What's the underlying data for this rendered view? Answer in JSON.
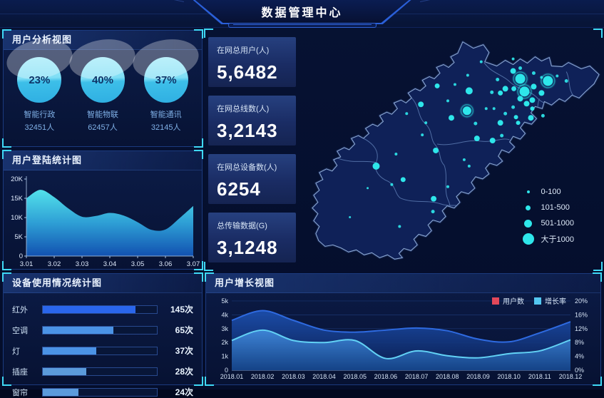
{
  "header": {
    "title": "数据管理中心"
  },
  "colors": {
    "accent_cyan": "#3fd9f6",
    "bubble": "#2ee6ea",
    "legend_red": "#e2485a",
    "legend_cyan": "#53c7f0",
    "area_top": "#55e8f0",
    "area_bottom": "#1253b4"
  },
  "panels": {
    "user_analysis": {
      "title": "用户分析视图",
      "gauges": [
        {
          "percent": "23%",
          "label": "智能行政",
          "count": "32451人"
        },
        {
          "percent": "40%",
          "label": "智能物联",
          "count": "62457人"
        },
        {
          "percent": "37%",
          "label": "智能通讯",
          "count": "32145人"
        }
      ]
    },
    "login_stats": {
      "title": "用户登陆统计图"
    },
    "device_usage": {
      "title": "设备使用情况统计图"
    },
    "user_growth": {
      "title": "用户增长视图"
    }
  },
  "stats": [
    {
      "label": "在网总用户(人)",
      "value": "5,6482"
    },
    {
      "label": "在网总线数(人)",
      "value": "3,2143"
    },
    {
      "label": "在网总设备数(人)",
      "value": "6254"
    },
    {
      "label": "总传输数据(G)",
      "value": "3,1248"
    }
  ],
  "map": {
    "legend": [
      {
        "label": "0-100",
        "r": 2
      },
      {
        "label": "101-500",
        "r": 3.5
      },
      {
        "label": "501-1000",
        "r": 5.5
      },
      {
        "label": "大于1000",
        "r": 8
      }
    ],
    "bubbles": [
      [
        313,
        68,
        7
      ],
      [
        352,
        71,
        7
      ],
      [
        319,
        86,
        7
      ],
      [
        238,
        113,
        6
      ],
      [
        241,
        85,
        5
      ],
      [
        303,
        57,
        4
      ],
      [
        332,
        79,
        4
      ],
      [
        313,
        96,
        4
      ],
      [
        322,
        103,
        4
      ],
      [
        330,
        98,
        4
      ],
      [
        343,
        88,
        4
      ],
      [
        292,
        82,
        4
      ],
      [
        285,
        88,
        3.5
      ],
      [
        304,
        82,
        3.5
      ],
      [
        173,
        104,
        4
      ],
      [
        216,
        123,
        4
      ],
      [
        285,
        130,
        4
      ],
      [
        252,
        152,
        4
      ],
      [
        274,
        155,
        4
      ],
      [
        194,
        169,
        4
      ],
      [
        110,
        191,
        5
      ],
      [
        191,
        237,
        4
      ],
      [
        148,
        210,
        3.5
      ],
      [
        328,
        123,
        4
      ],
      [
        196,
        78,
        3.5
      ],
      [
        310,
        130,
        3
      ],
      [
        330,
        110,
        3
      ],
      [
        345,
        120,
        2.5
      ],
      [
        307,
        122,
        3
      ],
      [
        239,
        63,
        2
      ],
      [
        258,
        44,
        2
      ],
      [
        303,
        40,
        2
      ],
      [
        313,
        53,
        2.5
      ],
      [
        332,
        60,
        2.5
      ],
      [
        343,
        66,
        2
      ],
      [
        365,
        64,
        2
      ],
      [
        378,
        71,
        2.5
      ],
      [
        281,
        69,
        2.5
      ],
      [
        273,
        87,
        2.5
      ],
      [
        265,
        110,
        2
      ],
      [
        276,
        110,
        2
      ],
      [
        292,
        117,
        2.5
      ],
      [
        303,
        108,
        2.5
      ],
      [
        221,
        76,
        2
      ],
      [
        180,
        130,
        2
      ],
      [
        175,
        147,
        2
      ],
      [
        153,
        117,
        2
      ],
      [
        211,
        99,
        2
      ],
      [
        250,
        131,
        2.5
      ],
      [
        234,
        182,
        2
      ],
      [
        241,
        191,
        2
      ],
      [
        138,
        174,
        2
      ],
      [
        98,
        222,
        1.5
      ],
      [
        132,
        217,
        2
      ],
      [
        211,
        220,
        2
      ],
      [
        190,
        255,
        2.5
      ],
      [
        73,
        263,
        1.5
      ],
      [
        143,
        276,
        2
      ],
      [
        287,
        148,
        2.5
      ]
    ]
  },
  "chart_data": [
    {
      "id": "login_stats",
      "type": "area",
      "title": "用户登陆统计图",
      "xticks": [
        "3.01",
        "3.02",
        "3.03",
        "3.04",
        "3.05",
        "3.06",
        "3.07"
      ],
      "yticks": [
        "0",
        "5K",
        "10K",
        "15K",
        "20K"
      ],
      "ylim": [
        0,
        20000
      ],
      "x": [
        3.01,
        3.015,
        3.02,
        3.025,
        3.03,
        3.035,
        3.04,
        3.045,
        3.05,
        3.055,
        3.06,
        3.065,
        3.07
      ],
      "values": [
        15000,
        17200,
        15300,
        12400,
        10200,
        10400,
        11200,
        10500,
        8800,
        6800,
        6900,
        9800,
        13000
      ]
    },
    {
      "id": "device_usage",
      "type": "bar",
      "orientation": "horizontal",
      "categories": [
        "红外",
        "空调",
        "灯",
        "插座",
        "窗帘"
      ],
      "values": [
        145,
        65,
        37,
        28,
        24
      ],
      "unit": "次",
      "value_labels": [
        "145次",
        "65次",
        "37次",
        "28次",
        "24次"
      ],
      "fill_percent": [
        81,
        62,
        47,
        38,
        31
      ],
      "bar_colors": [
        "#2a66ec",
        "#4b93e6",
        "#4b93e6",
        "#5b9bdb",
        "#5b9bdb"
      ]
    },
    {
      "id": "user_growth",
      "type": "area",
      "title": "用户增长视图",
      "categories": [
        "2018.01",
        "2018.02",
        "2018.03",
        "2018.04",
        "2018.05",
        "2018.06",
        "2018.07",
        "2018.08",
        "2018.09",
        "2018.10",
        "2018.11",
        "2018.12"
      ],
      "series": [
        {
          "name": "用户数",
          "axis": "left",
          "color": "#2e6ae0",
          "values": [
            3600,
            4300,
            3600,
            2900,
            2750,
            2900,
            3050,
            2850,
            2250,
            2050,
            2700,
            3500
          ]
        },
        {
          "name": "增长率",
          "axis": "right",
          "color": "#62d2f5",
          "values": [
            8.6,
            11.6,
            8.6,
            8.0,
            8.6,
            3.4,
            5.6,
            4.2,
            3.6,
            4.8,
            5.6,
            8.8
          ]
        }
      ],
      "ylim_left": [
        0,
        5000
      ],
      "ylim_right": [
        0,
        20
      ],
      "yticks_left": [
        "0",
        "1k",
        "2k",
        "3k",
        "4k",
        "5k"
      ],
      "yticks_right": [
        "0%",
        "4%",
        "8%",
        "12%",
        "16%",
        "20%"
      ],
      "legend_position": "top-right",
      "grid": true
    }
  ]
}
